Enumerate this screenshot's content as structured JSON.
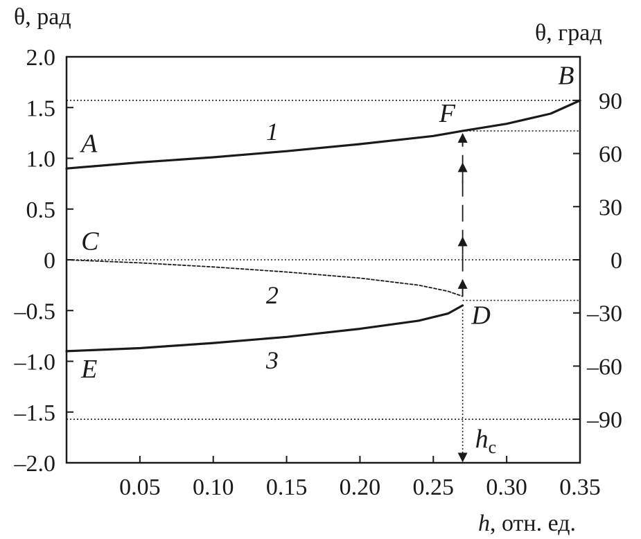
{
  "chart_data": {
    "type": "line",
    "y_left_label": "θ, рад",
    "y_right_label": "θ, град",
    "x_label_var": "h",
    "x_label_unit": ", отн. ед.",
    "xlim": [
      0,
      0.35
    ],
    "ylim": [
      -2.0,
      2.0
    ],
    "x_ticks": [
      {
        "v": 0.05,
        "label": "0.05"
      },
      {
        "v": 0.1,
        "label": "0.10"
      },
      {
        "v": 0.15,
        "label": "0.15"
      },
      {
        "v": 0.2,
        "label": "0.20"
      },
      {
        "v": 0.25,
        "label": "0.25"
      },
      {
        "v": 0.3,
        "label": "0.30"
      },
      {
        "v": 0.35,
        "label": "0.35"
      }
    ],
    "y_left_ticks": [
      {
        "v": 2.0,
        "label": "2.0"
      },
      {
        "v": 1.5,
        "label": "1.5"
      },
      {
        "v": 1.0,
        "label": "1.0"
      },
      {
        "v": 0.5,
        "label": "0.5"
      },
      {
        "v": 0,
        "label": "0"
      },
      {
        "v": -0.5,
        "label": "–0.5"
      },
      {
        "v": -1.0,
        "label": "–1.0"
      },
      {
        "v": -1.5,
        "label": "–1.5"
      },
      {
        "v": -2.0,
        "label": "–2.0"
      }
    ],
    "y_right_ticks": [
      {
        "deg": 90,
        "label": "90"
      },
      {
        "deg": 60,
        "label": "60"
      },
      {
        "deg": 30,
        "label": "30"
      },
      {
        "deg": 0,
        "label": "0"
      },
      {
        "deg": -30,
        "label": "–30"
      },
      {
        "deg": -60,
        "label": "–60"
      },
      {
        "deg": -90,
        "label": "–90"
      }
    ],
    "series": [
      {
        "label": "1",
        "style": "solid",
        "x": [
          0,
          0.05,
          0.1,
          0.15,
          0.2,
          0.25,
          0.27,
          0.3,
          0.33,
          0.35
        ],
        "y": [
          0.9,
          0.96,
          1.01,
          1.07,
          1.14,
          1.22,
          1.27,
          1.34,
          1.44,
          1.57
        ]
      },
      {
        "label": "2",
        "style": "dashed",
        "x": [
          0,
          0.05,
          0.1,
          0.15,
          0.2,
          0.24,
          0.26,
          0.27
        ],
        "y": [
          0,
          -0.03,
          -0.07,
          -0.12,
          -0.18,
          -0.25,
          -0.31,
          -0.36
        ]
      },
      {
        "label": "3",
        "style": "solid",
        "x": [
          0,
          0.05,
          0.1,
          0.15,
          0.2,
          0.24,
          0.26,
          0.27
        ],
        "y": [
          -0.9,
          -0.87,
          -0.82,
          -0.76,
          -0.68,
          -0.6,
          -0.53,
          -0.45
        ]
      }
    ],
    "point_labels": [
      {
        "label": "A",
        "x": 0.01,
        "y": 1.06
      },
      {
        "label": "B",
        "x": 0.335,
        "y": 1.73
      },
      {
        "label": "C",
        "x": 0.01,
        "y": 0.1
      },
      {
        "label": "D",
        "x": 0.276,
        "y": -0.63
      },
      {
        "label": "E",
        "x": 0.01,
        "y": -1.16
      },
      {
        "label": "F",
        "x": 0.254,
        "y": 1.36
      }
    ],
    "curve_labels": [
      {
        "label": "1",
        "x": 0.136,
        "y": 1.18
      },
      {
        "label": "2",
        "x": 0.136,
        "y": -0.43
      },
      {
        "label": "3",
        "x": 0.136,
        "y": -1.07
      }
    ],
    "reference_lines": [
      {
        "y": 1.571,
        "x0": 0,
        "x1": 0.35
      },
      {
        "y": 1.27,
        "x0": 0.27,
        "x1": 0.35
      },
      {
        "y": 0,
        "x0": 0,
        "x1": 0.35
      },
      {
        "y": -0.4,
        "x0": 0.27,
        "x1": 0.35
      },
      {
        "y": -1.571,
        "x0": 0,
        "x1": 0.35
      }
    ],
    "critical_line": {
      "x": 0.27,
      "y_from": -2.0,
      "y_to": -0.45
    },
    "transition": {
      "x": 0.27,
      "y_from": -0.36,
      "y_to": 1.26
    },
    "hc_label": {
      "var": "h",
      "sub": "c"
    }
  }
}
